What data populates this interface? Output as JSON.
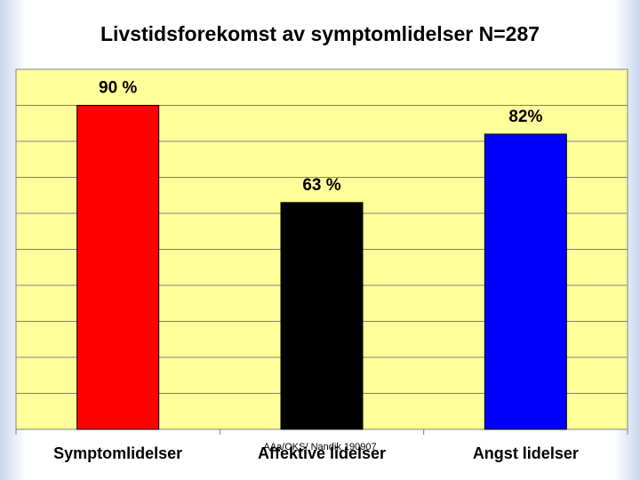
{
  "chart_data": {
    "type": "bar",
    "title": "Livstidsforekomst av symptomlidelser N=287",
    "categories": [
      "Symptomlidelser",
      "Affektive lidelser",
      "Angst lidelser"
    ],
    "values": [
      90,
      63,
      82
    ],
    "value_labels": [
      "90 %",
      "63 %",
      "82%"
    ],
    "colors": [
      "#ff0000",
      "#000000",
      "#0000ff"
    ],
    "ylim": [
      0,
      100
    ],
    "yticks": [
      0,
      10,
      20,
      30,
      40,
      50,
      60,
      70,
      80,
      90,
      100
    ],
    "grid": true,
    "plot_background": "#ffff99",
    "footnote": "AAa/OKS/ Nandik 190907"
  }
}
